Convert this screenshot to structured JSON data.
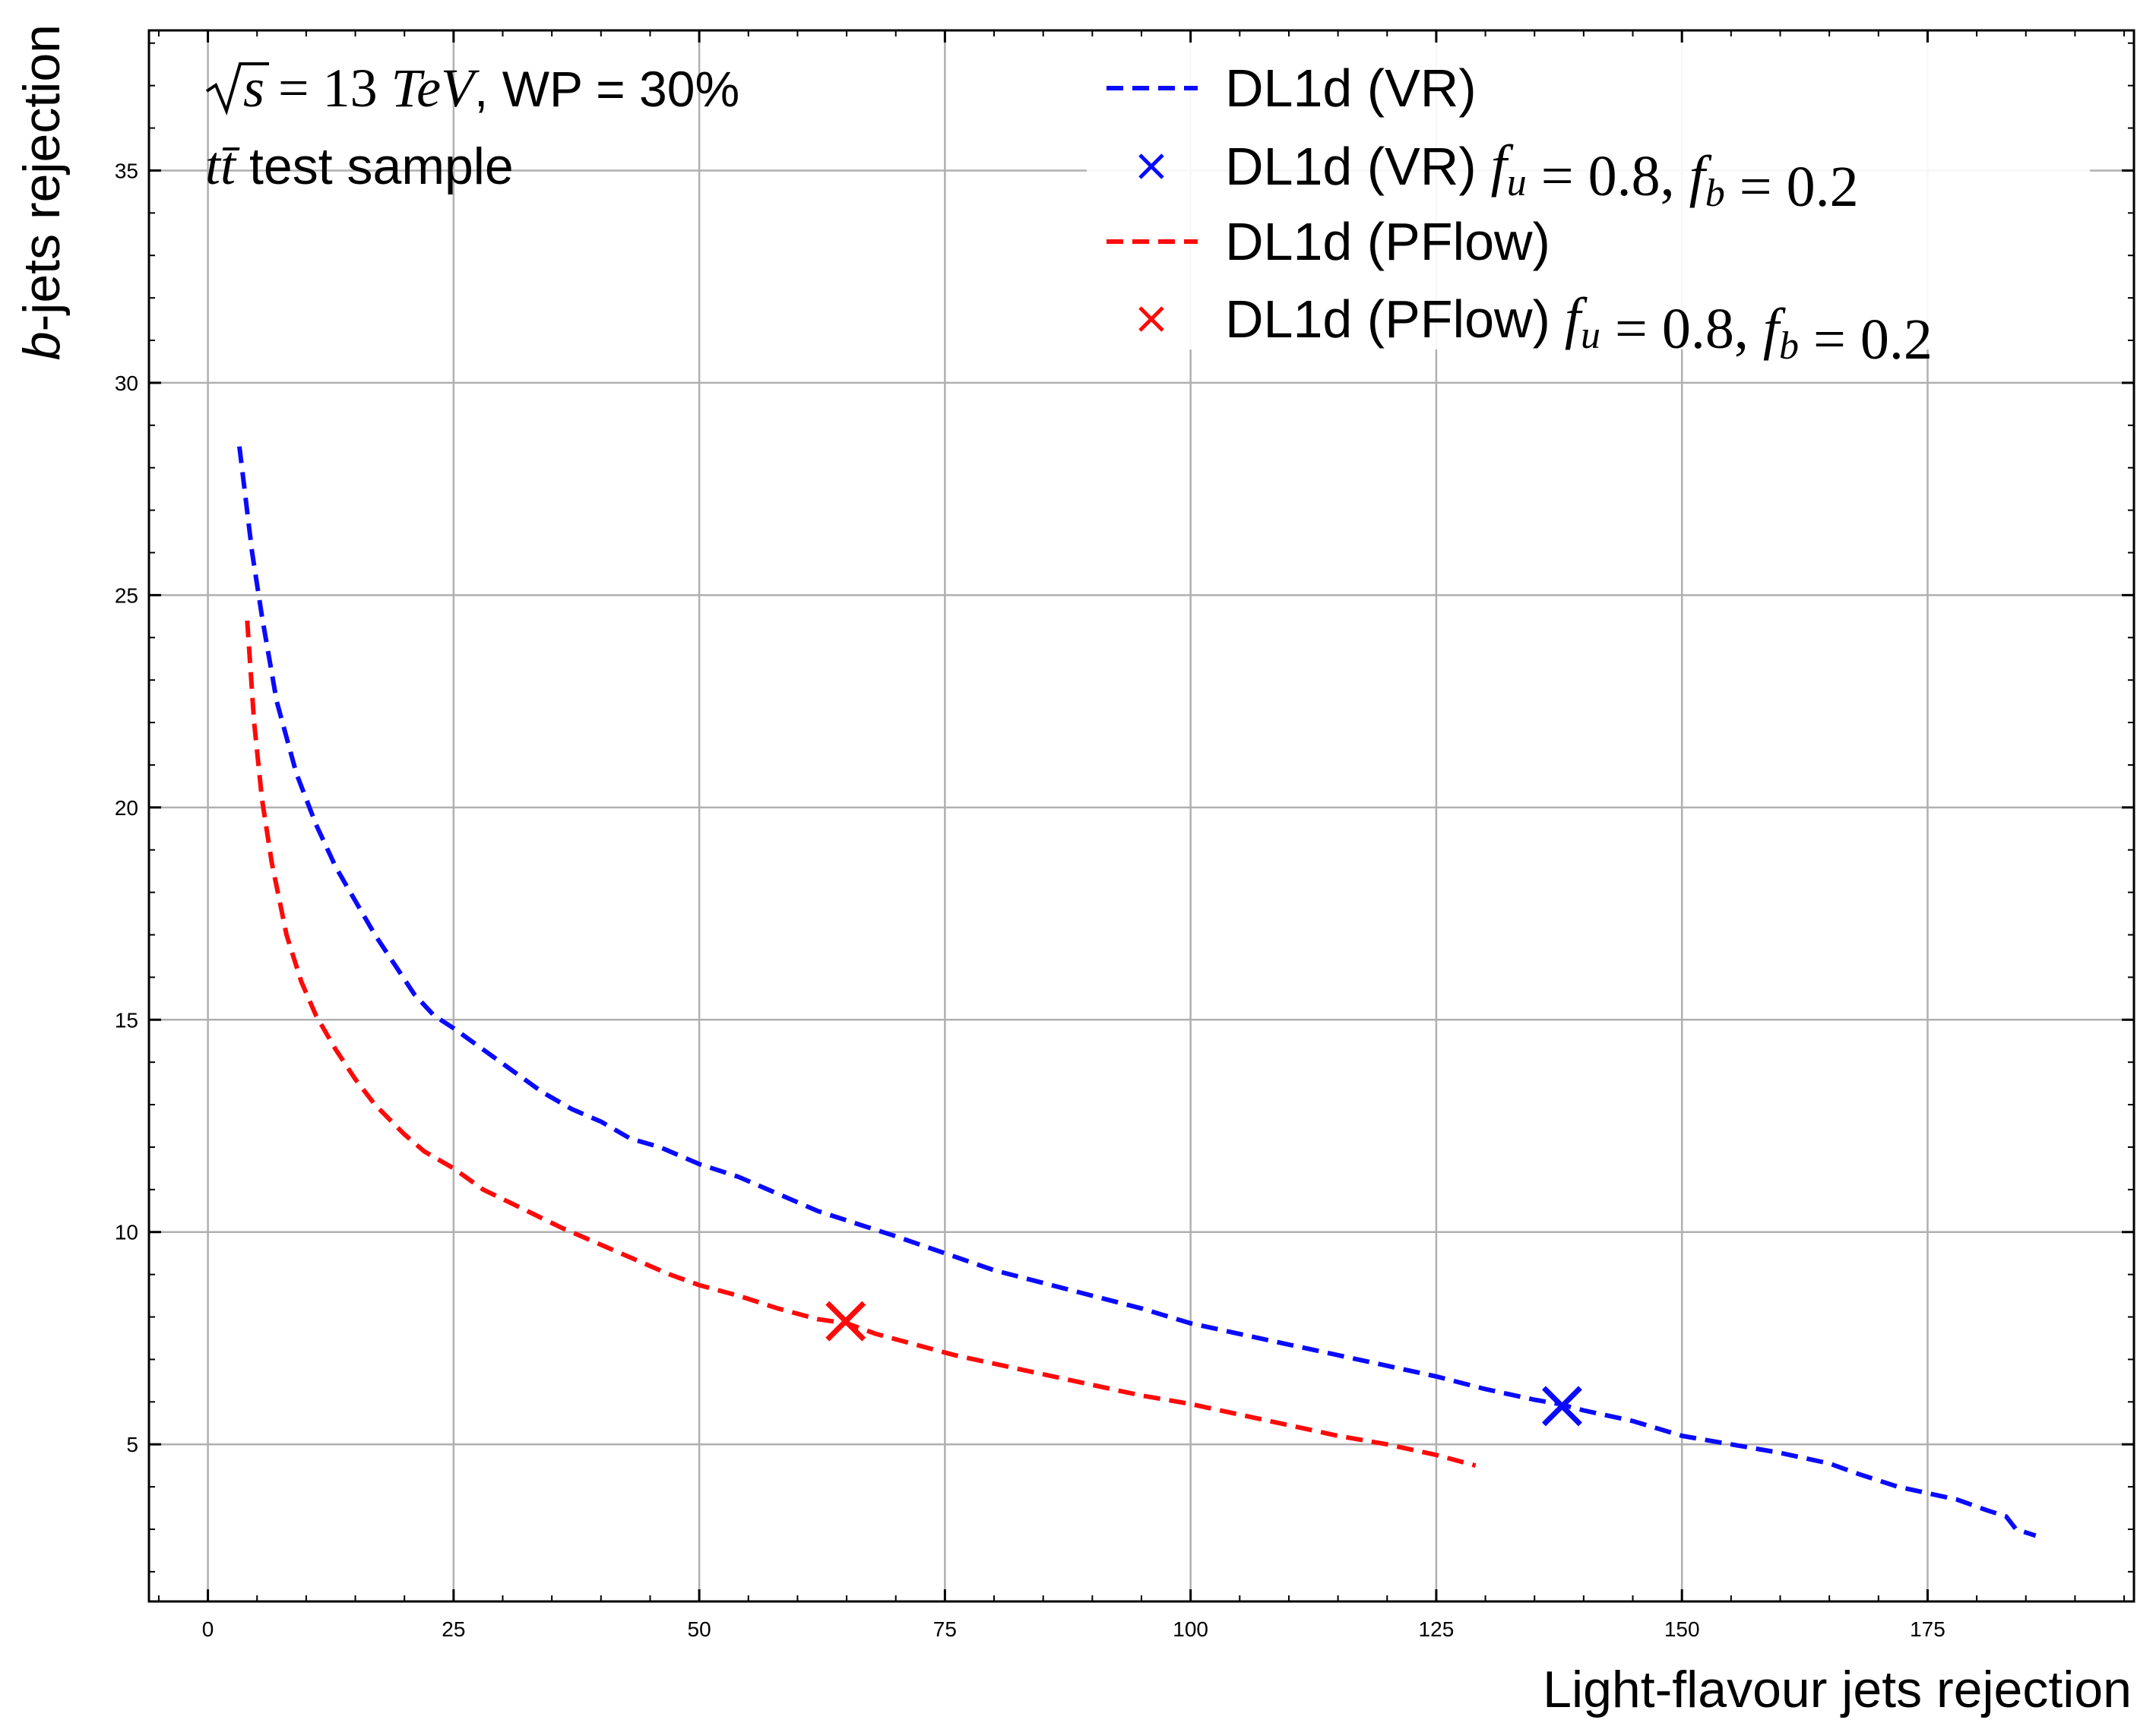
{
  "chart_data": {
    "type": "line",
    "xlabel": "Light-flavour jets rejection",
    "ylabel_italic": "b",
    "ylabel_rest": "-jets rejection",
    "xlim": [
      -6,
      196
    ],
    "ylim": [
      1.3,
      38.3
    ],
    "xticks": [
      0,
      25,
      50,
      75,
      100,
      125,
      150,
      175
    ],
    "yticks": [
      5,
      10,
      15,
      20,
      25,
      30,
      35
    ],
    "xtick_labels": [
      "0",
      "25",
      "50",
      "75",
      "100",
      "125",
      "150",
      "175"
    ],
    "ytick_labels": [
      "5",
      "10",
      "15",
      "20",
      "25",
      "30",
      "35"
    ],
    "grid": true,
    "legend_position": "top-right",
    "annotation": {
      "sqrt_s": "s",
      "energy": "= 13",
      "unit": "TeV",
      "wp": ", WP = 30%",
      "sample_math": "tt̄",
      "sample_text": "test sample"
    },
    "series": [
      {
        "name": "DL1d (VR)",
        "color": "#0a0aff",
        "style": "dashed",
        "x": [
          3.2,
          4.5,
          5.5,
          7,
          9,
          11,
          13,
          15,
          17,
          19,
          21,
          23,
          25,
          28,
          31,
          34,
          37,
          40,
          43,
          46,
          50,
          54,
          58,
          62,
          66,
          70,
          75,
          80,
          85,
          90,
          95,
          100,
          105,
          110,
          115,
          120,
          125,
          130,
          135,
          137.5,
          140,
          145,
          150,
          155,
          160,
          165,
          168,
          172,
          175,
          178,
          181,
          183,
          184,
          186
        ],
        "y": [
          28.5,
          26,
          24.5,
          22.5,
          20.8,
          19.6,
          18.6,
          17.8,
          17.0,
          16.3,
          15.6,
          15.1,
          14.8,
          14.3,
          13.8,
          13.3,
          12.9,
          12.6,
          12.2,
          12.0,
          11.6,
          11.3,
          10.9,
          10.5,
          10.2,
          9.9,
          9.5,
          9.1,
          8.8,
          8.5,
          8.2,
          7.85,
          7.6,
          7.35,
          7.1,
          6.85,
          6.6,
          6.3,
          6.05,
          5.95,
          5.8,
          5.55,
          5.2,
          5.0,
          4.8,
          4.55,
          4.3,
          4.0,
          3.85,
          3.7,
          3.45,
          3.3,
          3.0,
          2.85
        ]
      },
      {
        "name": "DL1d (PFlow)",
        "color": "#ff0a0a",
        "style": "dashed",
        "x": [
          4,
          4.7,
          5.5,
          6.5,
          8,
          9.5,
          11,
          13,
          15,
          17,
          20,
          22,
          25,
          28,
          32,
          36,
          40,
          44,
          47,
          50,
          54,
          58,
          62,
          65,
          68,
          72,
          76,
          80,
          85,
          90,
          95,
          100,
          105,
          110,
          115,
          120,
          125,
          129
        ],
        "y": [
          24.4,
          22,
          20.2,
          18.7,
          17.0,
          15.9,
          15.1,
          14.3,
          13.6,
          13.0,
          12.3,
          11.9,
          11.5,
          11.0,
          10.55,
          10.1,
          9.7,
          9.3,
          9.0,
          8.75,
          8.5,
          8.2,
          7.95,
          7.85,
          7.6,
          7.35,
          7.1,
          6.9,
          6.65,
          6.4,
          6.15,
          5.95,
          5.7,
          5.45,
          5.2,
          5.0,
          4.75,
          4.5
        ]
      }
    ],
    "markers": [
      {
        "name": "DL1d (VR) f_u = 0.8, f_b = 0.2",
        "color": "#0a0aff",
        "x": 137.8,
        "y": 5.9
      },
      {
        "name": "DL1d (PFlow) f_u = 0.8, f_b = 0.2",
        "color": "#ff0a0a",
        "x": 64.9,
        "y": 7.9
      }
    ],
    "legend": [
      {
        "kind": "line",
        "color": "#0a0aff",
        "label": "DL1d (VR)",
        "math": ""
      },
      {
        "kind": "marker",
        "color": "#0a0aff",
        "label": "DL1d (VR)",
        "math": "f_u = 0.8, f_b = 0.2"
      },
      {
        "kind": "line",
        "color": "#ff0a0a",
        "label": "DL1d (PFlow)",
        "math": ""
      },
      {
        "kind": "marker",
        "color": "#ff0a0a",
        "label": "DL1d (PFlow)",
        "math": "f_u = 0.8, f_b = 0.2"
      }
    ]
  }
}
